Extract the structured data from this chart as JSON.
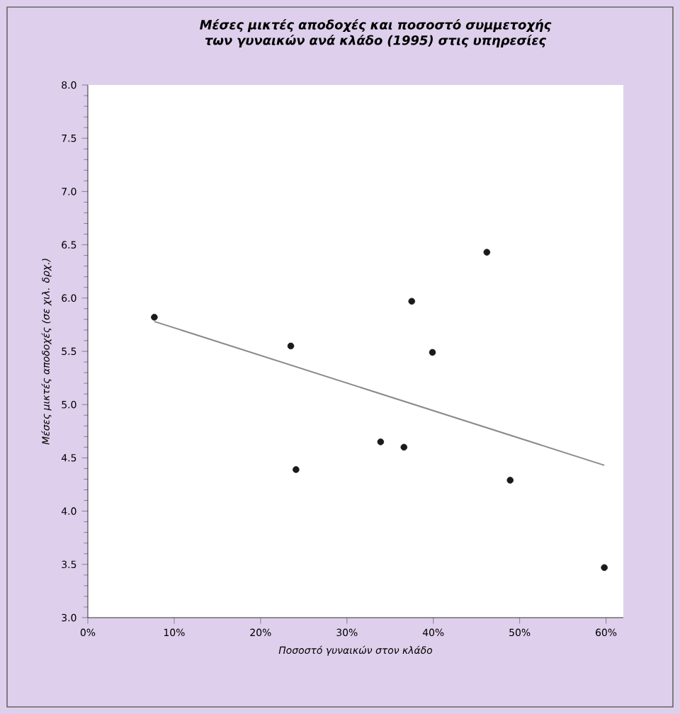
{
  "chart_data": {
    "type": "scatter",
    "title": "Μέσες μικτές αποδοχές και ποσοστό συμμετοχής των γυναικών ανά κλάδο (1995) στις υπηρεσίες",
    "xlabel": "Ποσοστό γυναικών στον κλάδο",
    "ylabel": "Μέσες μικτές αποδοχές (σε χιλ. δρχ.)",
    "xlim": [
      0,
      62
    ],
    "ylim": [
      3,
      8
    ],
    "xticks": [
      {
        "value": 0,
        "label": "0%"
      },
      {
        "value": 10,
        "label": "10%"
      },
      {
        "value": 20,
        "label": "20%"
      },
      {
        "value": 30,
        "label": "30%"
      },
      {
        "value": 40,
        "label": "40%"
      },
      {
        "value": 50,
        "label": "50%"
      },
      {
        "value": 60,
        "label": "60%"
      }
    ],
    "yticks": [
      {
        "value": 3,
        "label": "3.0"
      },
      {
        "value": 3.5,
        "label": "3.5"
      },
      {
        "value": 4,
        "label": "4.0"
      },
      {
        "value": 4.5,
        "label": "4.5"
      },
      {
        "value": 5,
        "label": "5.0"
      },
      {
        "value": 5.5,
        "label": "5.5"
      },
      {
        "value": 6,
        "label": "6.0"
      },
      {
        "value": 6.5,
        "label": "6.5"
      },
      {
        "value": 7,
        "label": "7.0"
      },
      {
        "value": 7.5,
        "label": "7.5"
      },
      {
        "value": 8,
        "label": "8.0"
      }
    ],
    "series": [
      {
        "marker": "circle",
        "color": "#1a1a1a",
        "x": [
          7.7,
          23.5,
          24.1,
          37.5,
          46.2,
          39.9,
          33.9,
          36.6,
          48.9,
          59.8
        ],
        "values": [
          5.82,
          5.55,
          4.39,
          5.97,
          6.43,
          5.49,
          4.65,
          4.6,
          4.29,
          3.47
        ]
      },
      {
        "type": "line",
        "marker": "none",
        "color": "#8a8a8a",
        "x": [
          7.7,
          59.8
        ],
        "values": [
          5.78,
          4.43
        ]
      }
    ]
  }
}
